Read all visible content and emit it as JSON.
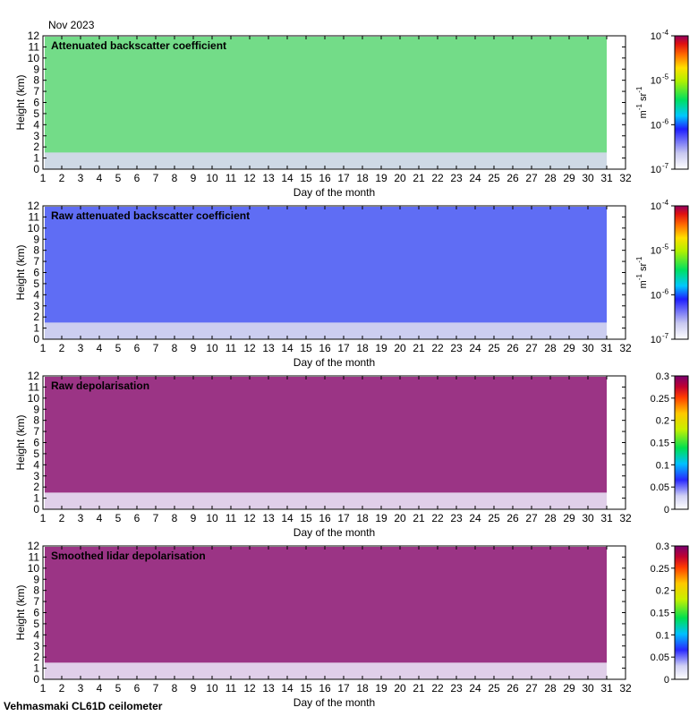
{
  "month_label": "Nov 2023",
  "footer": "Vehmasmaki CL61D ceilometer",
  "chart_data": [
    {
      "type": "heatmap",
      "title": "Attenuated backscatter coefficient",
      "xlabel": "Day of the month",
      "ylabel": "Height (km)",
      "xlim": [
        1,
        32
      ],
      "ylim": [
        0,
        12
      ],
      "x_ticks": [
        "1",
        "2",
        "3",
        "4",
        "5",
        "6",
        "7",
        "8",
        "9",
        "10",
        "11",
        "12",
        "13",
        "14",
        "15",
        "16",
        "17",
        "18",
        "19",
        "20",
        "21",
        "22",
        "23",
        "24",
        "25",
        "26",
        "27",
        "28",
        "29",
        "30",
        "31",
        "32"
      ],
      "y_ticks": [
        "0",
        "1",
        "2",
        "3",
        "4",
        "5",
        "6",
        "7",
        "8",
        "9",
        "10",
        "11",
        "12"
      ],
      "colorbar": {
        "scale": "log",
        "range": [
          1e-07,
          0.0001
        ],
        "ticks": [
          "10",
          "10",
          "10",
          "10"
        ],
        "tick_exponents": [
          "-7",
          "-6",
          "-5",
          "-4"
        ],
        "unit": "m",
        "unit_exp1": "-1",
        "unit_mid": " sr",
        "unit_exp2": "-1"
      }
    },
    {
      "type": "heatmap",
      "title": "Raw attenuated backscatter coefficient",
      "xlabel": "Day of the month",
      "ylabel": "Height (km)",
      "xlim": [
        1,
        32
      ],
      "ylim": [
        0,
        12
      ],
      "x_ticks": [
        "1",
        "2",
        "3",
        "4",
        "5",
        "6",
        "7",
        "8",
        "9",
        "10",
        "11",
        "12",
        "13",
        "14",
        "15",
        "16",
        "17",
        "18",
        "19",
        "20",
        "21",
        "22",
        "23",
        "24",
        "25",
        "26",
        "27",
        "28",
        "29",
        "30",
        "31",
        "32"
      ],
      "y_ticks": [
        "0",
        "1",
        "2",
        "3",
        "4",
        "5",
        "6",
        "7",
        "8",
        "9",
        "10",
        "11",
        "12"
      ],
      "colorbar": {
        "scale": "log",
        "range": [
          1e-07,
          0.0001
        ],
        "ticks": [
          "10",
          "10",
          "10",
          "10"
        ],
        "tick_exponents": [
          "-7",
          "-6",
          "-5",
          "-4"
        ],
        "unit": "m",
        "unit_exp1": "-1",
        "unit_mid": " sr",
        "unit_exp2": "-1"
      }
    },
    {
      "type": "heatmap",
      "title": "Raw depolarisation",
      "xlabel": "Day of the month",
      "ylabel": "Height (km)",
      "xlim": [
        1,
        32
      ],
      "ylim": [
        0,
        12
      ],
      "x_ticks": [
        "1",
        "2",
        "3",
        "4",
        "5",
        "6",
        "7",
        "8",
        "9",
        "10",
        "11",
        "12",
        "13",
        "14",
        "15",
        "16",
        "17",
        "18",
        "19",
        "20",
        "21",
        "22",
        "23",
        "24",
        "25",
        "26",
        "27",
        "28",
        "29",
        "30",
        "31",
        "32"
      ],
      "y_ticks": [
        "0",
        "1",
        "2",
        "3",
        "4",
        "5",
        "6",
        "7",
        "8",
        "9",
        "10",
        "11",
        "12"
      ],
      "colorbar": {
        "scale": "linear",
        "range": [
          0,
          0.3
        ],
        "ticks": [
          "0",
          "0.05",
          "0.1",
          "0.15",
          "0.2",
          "0.25",
          "0.3"
        ]
      }
    },
    {
      "type": "heatmap",
      "title": "Smoothed lidar depolarisation",
      "xlabel": "Day of the month",
      "ylabel": "Height (km)",
      "xlim": [
        1,
        32
      ],
      "ylim": [
        0,
        12
      ],
      "x_ticks": [
        "1",
        "2",
        "3",
        "4",
        "5",
        "6",
        "7",
        "8",
        "9",
        "10",
        "11",
        "12",
        "13",
        "14",
        "15",
        "16",
        "17",
        "18",
        "19",
        "20",
        "21",
        "22",
        "23",
        "24",
        "25",
        "26",
        "27",
        "28",
        "29",
        "30",
        "31",
        "32"
      ],
      "y_ticks": [
        "0",
        "1",
        "2",
        "3",
        "4",
        "5",
        "6",
        "7",
        "8",
        "9",
        "10",
        "11",
        "12"
      ],
      "colorbar": {
        "scale": "linear",
        "range": [
          0,
          0.3
        ],
        "ticks": [
          "0",
          "0.05",
          "0.1",
          "0.15",
          "0.2",
          "0.25",
          "0.3"
        ]
      }
    }
  ]
}
